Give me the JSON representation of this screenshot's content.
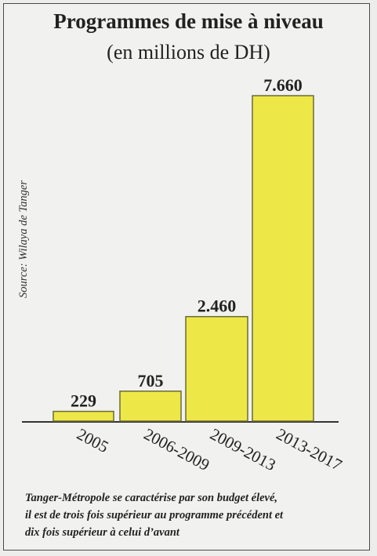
{
  "title": "Programmes de mise à niveau",
  "subtitle": "(en millions de DH)",
  "source": "Source: Wilaya de Tanger",
  "caption_lines": [
    "Tanger-Métropole se caractérise par son budget élevé,",
    "il est de trois fois supérieur au programme précédent et",
    "dix fois supérieur à celui d’avant"
  ],
  "colors": {
    "bar": "#ede847",
    "bar_stroke": "#6b6b3a",
    "text": "#222222"
  },
  "chart_data": {
    "type": "bar",
    "categories": [
      "2005",
      "2006-2009",
      "2009-2013",
      "2013-2017"
    ],
    "values": [
      229,
      705,
      2460,
      7660
    ],
    "value_labels": [
      "229",
      "705",
      "2.460",
      "7.660"
    ],
    "title": "Programmes de mise à niveau",
    "subtitle": "(en millions de DH)",
    "ylim": [
      0,
      7660
    ],
    "grid": false,
    "legend": "none"
  }
}
